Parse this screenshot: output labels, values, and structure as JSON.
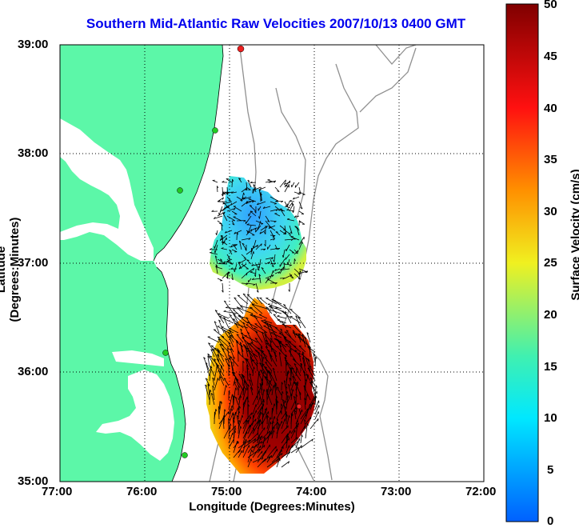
{
  "map": {
    "title": "Southern Mid-Atlantic Raw Velocities 2007/10/13 0400 GMT",
    "xlabel": "Longitude (Degrees:Minutes)",
    "ylabel": "Latitude (Degrees:Minutes)",
    "x_ticks": [
      "77:00",
      "76:00",
      "75:00",
      "74:00",
      "73:00",
      "72:00"
    ],
    "y_ticks": [
      "39:00",
      "38:00",
      "37:00",
      "36:00",
      "35:00"
    ],
    "colors": {
      "land": "#5cf7a8",
      "title": "#0000ee",
      "station": "#22cc22",
      "station_red": "#ee2020",
      "bathymetry": "#909090"
    }
  },
  "colorbar": {
    "label": "Surface Velocity (cm/s)",
    "ticks": [
      "50",
      "45",
      "40",
      "35",
      "30",
      "25",
      "20",
      "15",
      "10",
      "5",
      "0"
    ],
    "range": [
      0,
      50
    ]
  }
}
